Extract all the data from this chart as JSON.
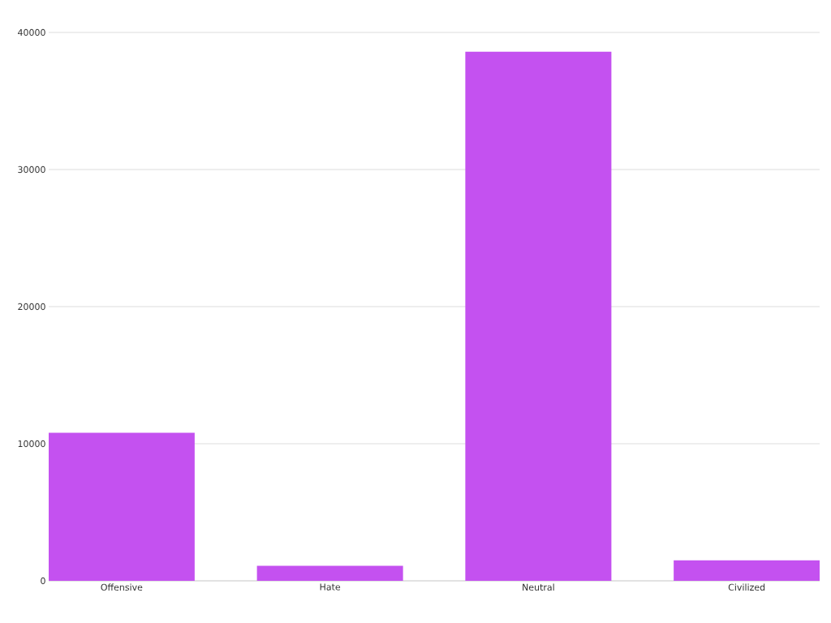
{
  "chart_data": {
    "type": "bar",
    "categories": [
      "Offensive",
      "Hate",
      "Neutral",
      "Civilized"
    ],
    "values": [
      10800,
      1100,
      38600,
      1500
    ],
    "color": "#c451f0",
    "ylim": [
      0,
      40000
    ],
    "yticks": [
      0,
      10000,
      20000,
      30000,
      40000
    ],
    "grid": "y"
  }
}
